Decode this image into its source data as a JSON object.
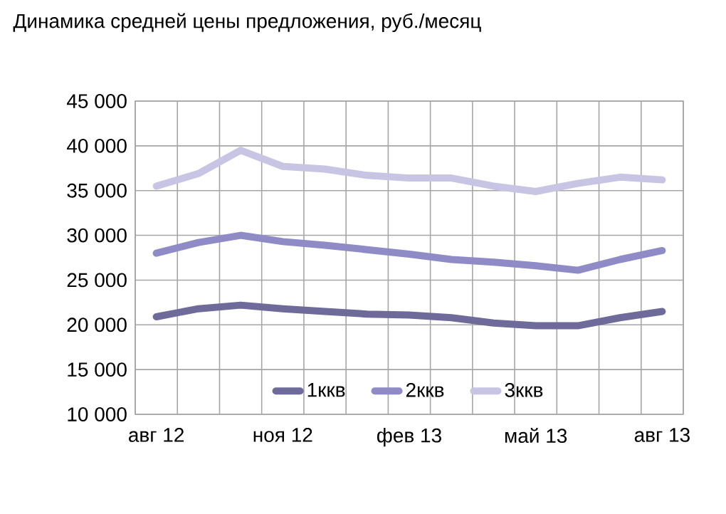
{
  "chart_data": {
    "type": "line",
    "title": "Динамика средней цены предложения, руб./месяц",
    "categories": [
      "авг 12",
      null,
      null,
      "ноя 12",
      null,
      null,
      "фев 13",
      null,
      null,
      "май 13",
      null,
      null,
      "авг 13"
    ],
    "series": [
      {
        "name": "1ккв",
        "color": "#6e6a9a",
        "values": [
          20900,
          21800,
          22200,
          21800,
          21500,
          21200,
          21100,
          20800,
          20200,
          19900,
          19900,
          20800,
          21500
        ]
      },
      {
        "name": "2ккв",
        "color": "#8f8bc6",
        "values": [
          28000,
          29200,
          30000,
          29300,
          28900,
          28400,
          27900,
          27300,
          27000,
          26600,
          26100,
          27300,
          28300
        ]
      },
      {
        "name": "3ккв",
        "color": "#c7c5e3",
        "values": [
          35500,
          36900,
          39500,
          37700,
          37400,
          36700,
          36400,
          36400,
          35500,
          34900,
          35800,
          36500,
          36200
        ]
      }
    ],
    "ylim": [
      10000,
      45000
    ],
    "yticks": [
      {
        "value": 10000,
        "label": "10 000"
      },
      {
        "value": 15000,
        "label": "15 000"
      },
      {
        "value": 20000,
        "label": "20 000"
      },
      {
        "value": 25000,
        "label": "25 000"
      },
      {
        "value": 30000,
        "label": "30 000"
      },
      {
        "value": 35000,
        "label": "35 000"
      },
      {
        "value": 40000,
        "label": "40 000"
      },
      {
        "value": 45000,
        "label": "45 000"
      }
    ],
    "grid": true,
    "legend": "bottom",
    "marker": "none",
    "line_style": "solid"
  }
}
